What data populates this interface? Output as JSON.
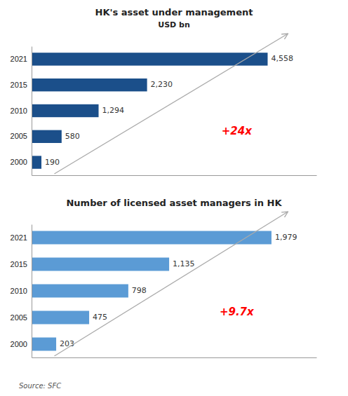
{
  "chart_data": [
    {
      "type": "bar",
      "orientation": "horizontal",
      "title": "HK's asset under management",
      "subtitle": "USD bn",
      "categories": [
        "2000",
        "2005",
        "2010",
        "2015",
        "2021"
      ],
      "values": [
        190,
        580,
        1294,
        2230,
        4558
      ],
      "value_labels": [
        "190",
        "580",
        "1,294",
        "2,230",
        "4,558"
      ],
      "data_labels": true,
      "color": "#1b4f8a",
      "xlim": [
        0,
        5500
      ],
      "tick_labels": "y",
      "grid": false,
      "annotations": [
        {
          "text": "+24x",
          "color": "#ff0000"
        }
      ]
    },
    {
      "type": "bar",
      "orientation": "horizontal",
      "title": "Number of licensed asset managers in HK",
      "categories": [
        "2000",
        "2005",
        "2010",
        "2015",
        "2021"
      ],
      "values": [
        203,
        475,
        798,
        1135,
        1979
      ],
      "value_labels": [
        "203",
        "475",
        "798",
        "1,135",
        "1,979"
      ],
      "data_labels": true,
      "color": "#5b9bd5",
      "xlim": [
        0,
        2350
      ],
      "tick_labels": "y",
      "grid": false,
      "annotations": [
        {
          "text": "+9.7x",
          "color": "#ff0000"
        }
      ],
      "source": "Source: SFC"
    }
  ]
}
